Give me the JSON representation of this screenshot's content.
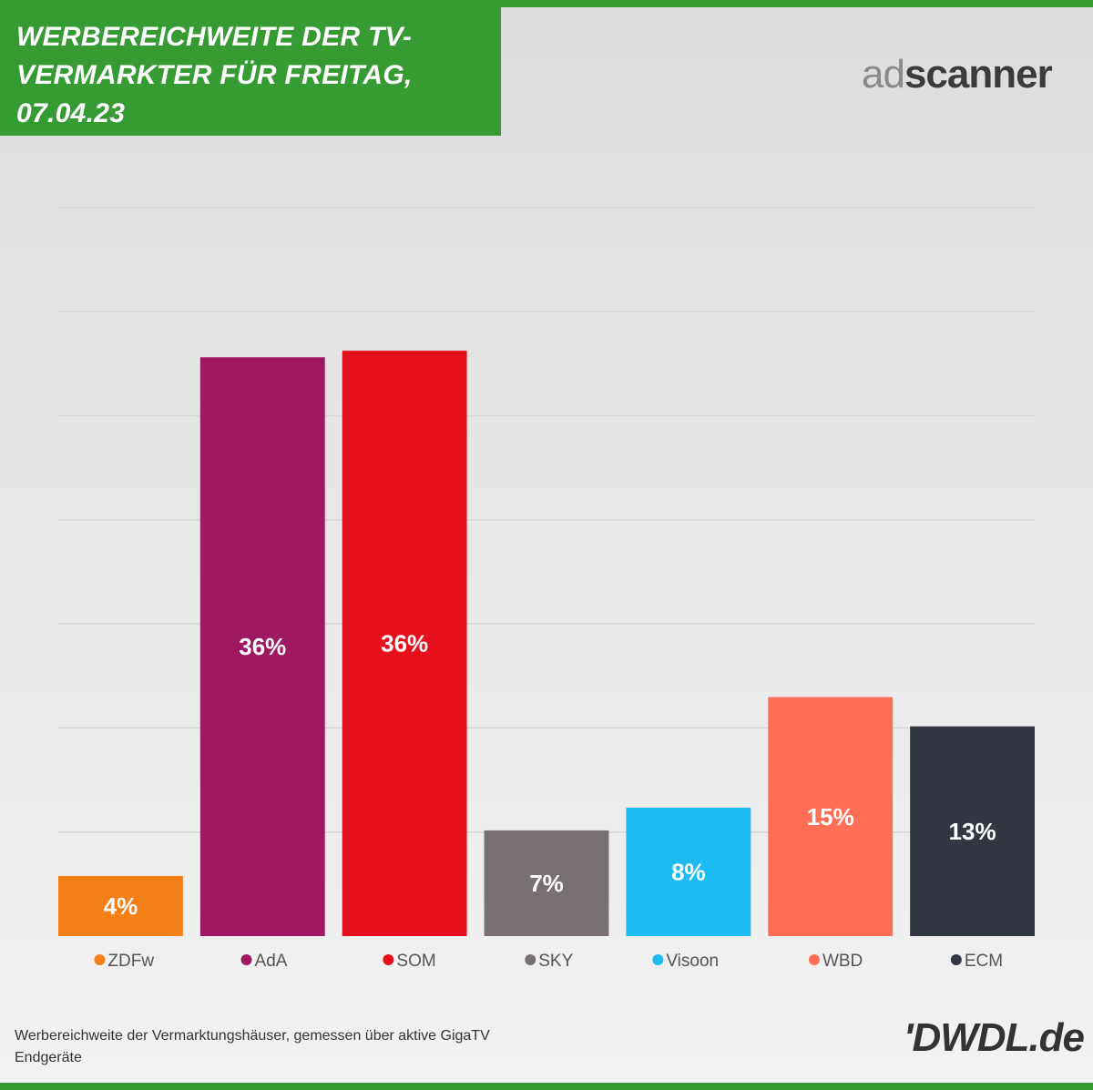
{
  "header": {
    "title_lines": [
      "WERBEREICHWEITE DER TV-",
      "VERMARKTER FÜR FREITAG,",
      "07.04.23"
    ]
  },
  "logos": {
    "adscanner_prefix": "ad",
    "adscanner_suffix": "scanner",
    "dwdl": "'DWDL.de"
  },
  "footnote": {
    "line1": "Werbereichweite der Vermarktungshäuser, gemessen über aktive GigaTV",
    "line2": "Endgeräte"
  },
  "colors": {
    "brand_green": "#379b34",
    "label_text": "#ffffff",
    "legend_text": "#555555"
  },
  "chart_data": {
    "type": "bar",
    "title": "WERBEREICHWEITE DER TV-VERMARKTER FÜR FREITAG, 07.04.23",
    "categories": [
      "ZDFw",
      "AdA",
      "SOM",
      "SKY",
      "Visoon",
      "WBD",
      "ECM"
    ],
    "values": [
      3.7,
      35.6,
      36.0,
      6.5,
      7.9,
      14.7,
      12.9
    ],
    "data_labels": [
      "4%",
      "36%",
      "36%",
      "7%",
      "8%",
      "15%",
      "13%"
    ],
    "colors": [
      "#f57f17",
      "#9e1862",
      "#e5101b",
      "#787070",
      "#1cbcf3",
      "#ff6e55",
      "#333742"
    ],
    "ylim": [
      0,
      45
    ],
    "gridlines": [
      0,
      6.4,
      12.8,
      19.2,
      25.6,
      32,
      38.4,
      44.8
    ],
    "grid": true,
    "legend": "bottom",
    "xlabel": "",
    "ylabel": ""
  }
}
